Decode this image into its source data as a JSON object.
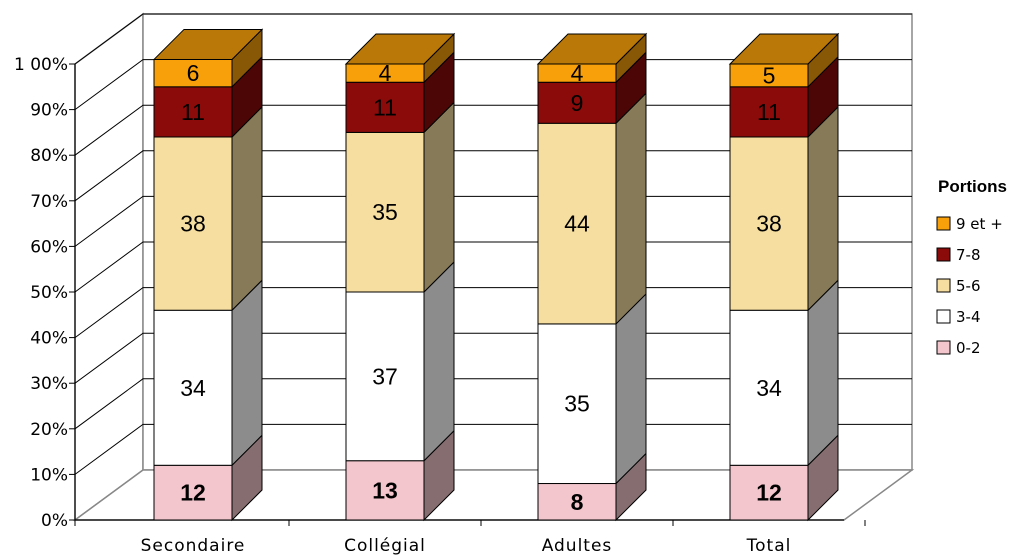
{
  "chart_data": {
    "type": "bar",
    "stacked": true,
    "percent": true,
    "three_d": true,
    "categories": [
      "Secondaire",
      "Collégial",
      "Adultes",
      "Total"
    ],
    "series": [
      {
        "name": "0-2",
        "values": [
          12,
          13,
          8,
          12
        ],
        "color": "#f2c6cc",
        "label_bold": true
      },
      {
        "name": "3-4",
        "values": [
          34,
          37,
          35,
          34
        ],
        "color": "#ffffff",
        "label_bold": false
      },
      {
        "name": "5-6",
        "values": [
          38,
          35,
          44,
          38
        ],
        "color": "#f6dea0",
        "label_bold": false
      },
      {
        "name": "7-8",
        "values": [
          11,
          11,
          9,
          11
        ],
        "color": "#8b0b0b",
        "label_bold": false
      },
      {
        "name": "9 et +",
        "values": [
          6,
          4,
          4,
          5
        ],
        "color": "#f8a00a",
        "label_bold": false
      }
    ],
    "yticks": [
      "0%",
      "10%",
      "20%",
      "30%",
      "40%",
      "50%",
      "60%",
      "70%",
      "80%",
      "90%",
      "1 00%"
    ],
    "ylim": [
      0,
      100
    ],
    "grid": true,
    "legend": {
      "title": "Portions",
      "position": "right",
      "order": [
        "9 et +",
        "7-8",
        "5-6",
        "3-4",
        "0-2"
      ]
    }
  }
}
